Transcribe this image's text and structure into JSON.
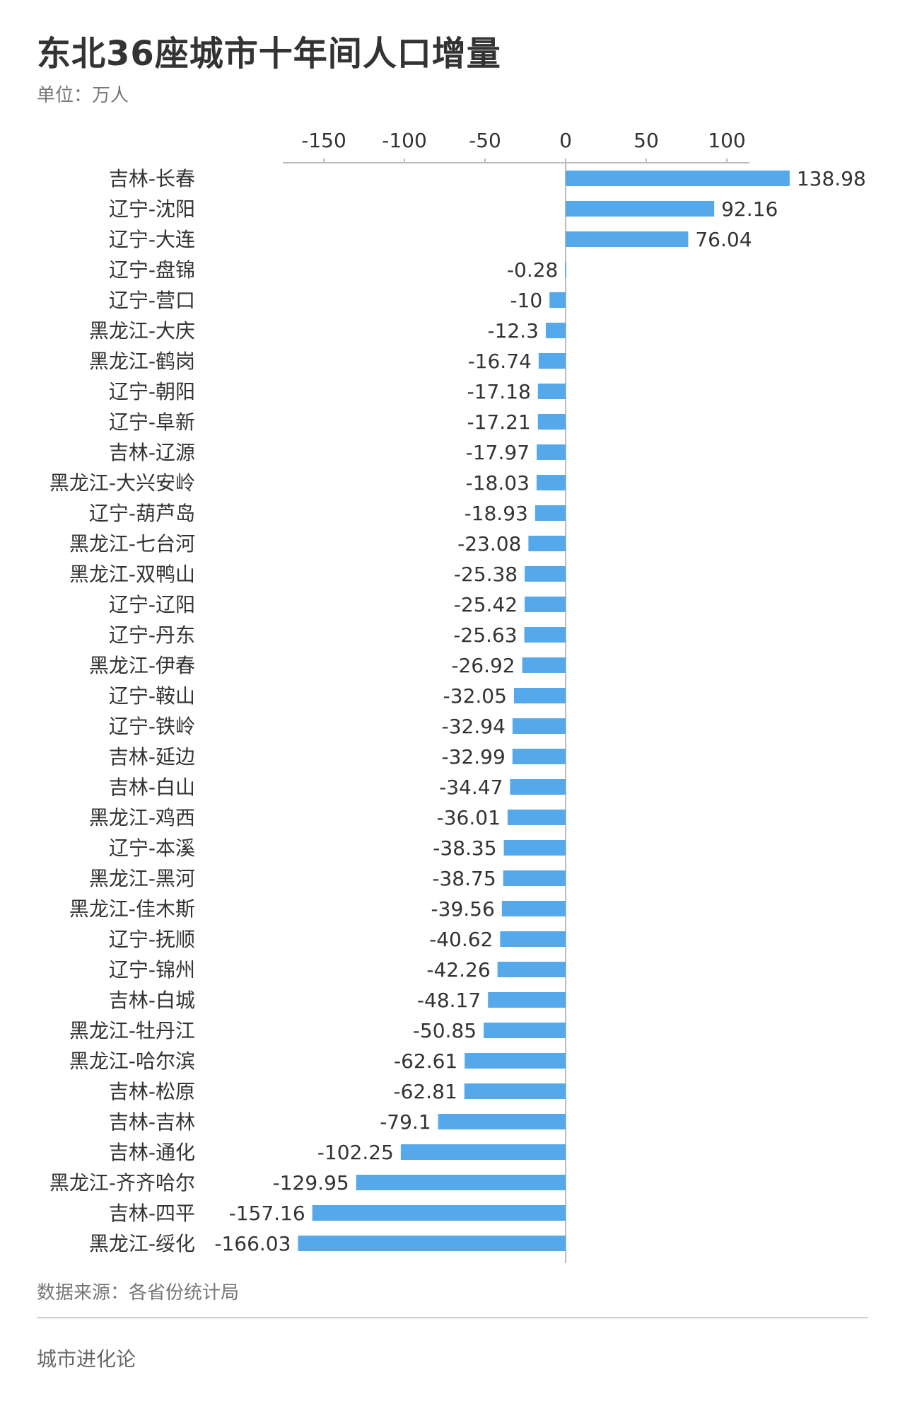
{
  "title": "东北36座城市十年间人口增量",
  "unit_label": "单位：万人",
  "source_label": "数据来源：各省份统计局",
  "brand": "城市进化论",
  "colors": {
    "bar": "#55a8ea",
    "axis": "#bbbbbb",
    "text": "#333333",
    "muted": "#777777"
  },
  "chart_data": {
    "type": "bar",
    "orientation": "horizontal",
    "axis_position": "top",
    "xlim": [
      -175,
      140
    ],
    "xticks": [
      -150,
      -100,
      -50,
      0,
      50,
      100
    ],
    "categories": [
      "吉林-长春",
      "辽宁-沈阳",
      "辽宁-大连",
      "辽宁-盘锦",
      "辽宁-营口",
      "黑龙江-大庆",
      "黑龙江-鹤岗",
      "辽宁-朝阳",
      "辽宁-阜新",
      "吉林-辽源",
      "黑龙江-大兴安岭",
      "辽宁-葫芦岛",
      "黑龙江-七台河",
      "黑龙江-双鸭山",
      "辽宁-辽阳",
      "辽宁-丹东",
      "黑龙江-伊春",
      "辽宁-鞍山",
      "辽宁-铁岭",
      "吉林-延边",
      "吉林-白山",
      "黑龙江-鸡西",
      "辽宁-本溪",
      "黑龙江-黑河",
      "黑龙江-佳木斯",
      "辽宁-抚顺",
      "辽宁-锦州",
      "吉林-白城",
      "黑龙江-牡丹江",
      "黑龙江-哈尔滨",
      "吉林-松原",
      "吉林-吉林",
      "吉林-通化",
      "黑龙江-齐齐哈尔",
      "吉林-四平",
      "黑龙江-绥化"
    ],
    "values": [
      138.98,
      92.16,
      76.04,
      -0.28,
      -10,
      -12.3,
      -16.74,
      -17.18,
      -17.21,
      -17.97,
      -18.03,
      -18.93,
      -23.08,
      -25.38,
      -25.42,
      -25.63,
      -26.92,
      -32.05,
      -32.94,
      -32.99,
      -34.47,
      -36.01,
      -38.35,
      -38.75,
      -39.56,
      -40.62,
      -42.26,
      -48.17,
      -50.85,
      -62.61,
      -62.81,
      -79.1,
      -102.25,
      -129.95,
      -157.16,
      -166.03
    ],
    "value_labels": [
      "138.98",
      "92.16",
      "76.04",
      "-0.28",
      "-10",
      "-12.3",
      "-16.74",
      "-17.18",
      "-17.21",
      "-17.97",
      "-18.03",
      "-18.93",
      "-23.08",
      "-25.38",
      "-25.42",
      "-25.63",
      "-26.92",
      "-32.05",
      "-32.94",
      "-32.99",
      "-34.47",
      "-36.01",
      "-38.35",
      "-38.75",
      "-39.56",
      "-40.62",
      "-42.26",
      "-48.17",
      "-50.85",
      "-62.61",
      "-62.81",
      "-79.1",
      "-102.25",
      "-129.95",
      "-157.16",
      "-166.03"
    ]
  }
}
